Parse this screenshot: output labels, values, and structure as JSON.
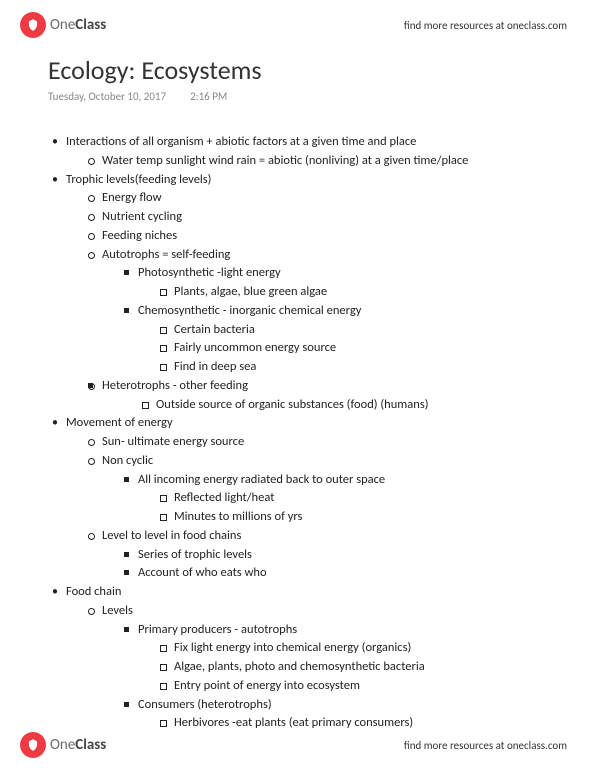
{
  "brand": {
    "one": "One",
    "class": "Class"
  },
  "resources_text": "find more resources at oneclass.com",
  "title": "Ecology: Ecosystems",
  "date": "Tuesday, October 10, 2017",
  "time": "2:16 PM",
  "outline": [
    {
      "t": "Interactions of all organism + abiotic factors at a given time and place",
      "c": [
        {
          "t": "Water temp sunlight wind rain = abiotic (nonliving) at a given time/place"
        }
      ]
    },
    {
      "t": "Trophic levels(feeding levels)",
      "c": [
        {
          "t": "Energy flow"
        },
        {
          "t": "Nutrient cycling"
        },
        {
          "t": "Feeding niches"
        },
        {
          "t": "Autotrophs = self-feeding",
          "c": [
            {
              "t": "Photosynthetic -light energy",
              "c": [
                {
                  "t": "Plants, algae, blue green algae"
                }
              ]
            },
            {
              "t": "Chemosynthetic - inorganic chemical energy",
              "c": [
                {
                  "t": "Certain bacteria"
                },
                {
                  "t": "Fairly uncommon energy source"
                },
                {
                  "t": "Find in deep sea"
                }
              ]
            }
          ]
        },
        {
          "t": "Heterotrophs - other feeding",
          "c": [
            {
              "t": "",
              "skip": true,
              "c": [
                {
                  "t": "Outside source of organic substances (food) (humans)"
                }
              ]
            }
          ]
        }
      ]
    },
    {
      "t": "Movement of energy",
      "c": [
        {
          "t": "Sun- ultimate energy source"
        },
        {
          "t": "Non cyclic",
          "c": [
            {
              "t": "All incoming energy radiated back to outer space",
              "c": [
                {
                  "t": "Reflected light/heat"
                },
                {
                  "t": "Minutes to millions of yrs"
                }
              ]
            }
          ]
        },
        {
          "t": "Level to level in food chains",
          "c": [
            {
              "t": "Series of trophic levels"
            },
            {
              "t": "Account of who eats who"
            }
          ]
        }
      ]
    },
    {
      "t": "Food chain",
      "c": [
        {
          "t": "Levels",
          "c": [
            {
              "t": "Primary producers - autotrophs",
              "c": [
                {
                  "t": "Fix light energy into chemical energy (organics)"
                },
                {
                  "t": "Algae, plants, photo and chemosynthetic bacteria"
                },
                {
                  "t": "Entry point of energy into ecosystem"
                }
              ]
            },
            {
              "t": "Consumers (heterotrophs)",
              "c": [
                {
                  "t": "Herbivores -eat plants (eat primary consumers)"
                }
              ]
            }
          ]
        }
      ]
    }
  ]
}
